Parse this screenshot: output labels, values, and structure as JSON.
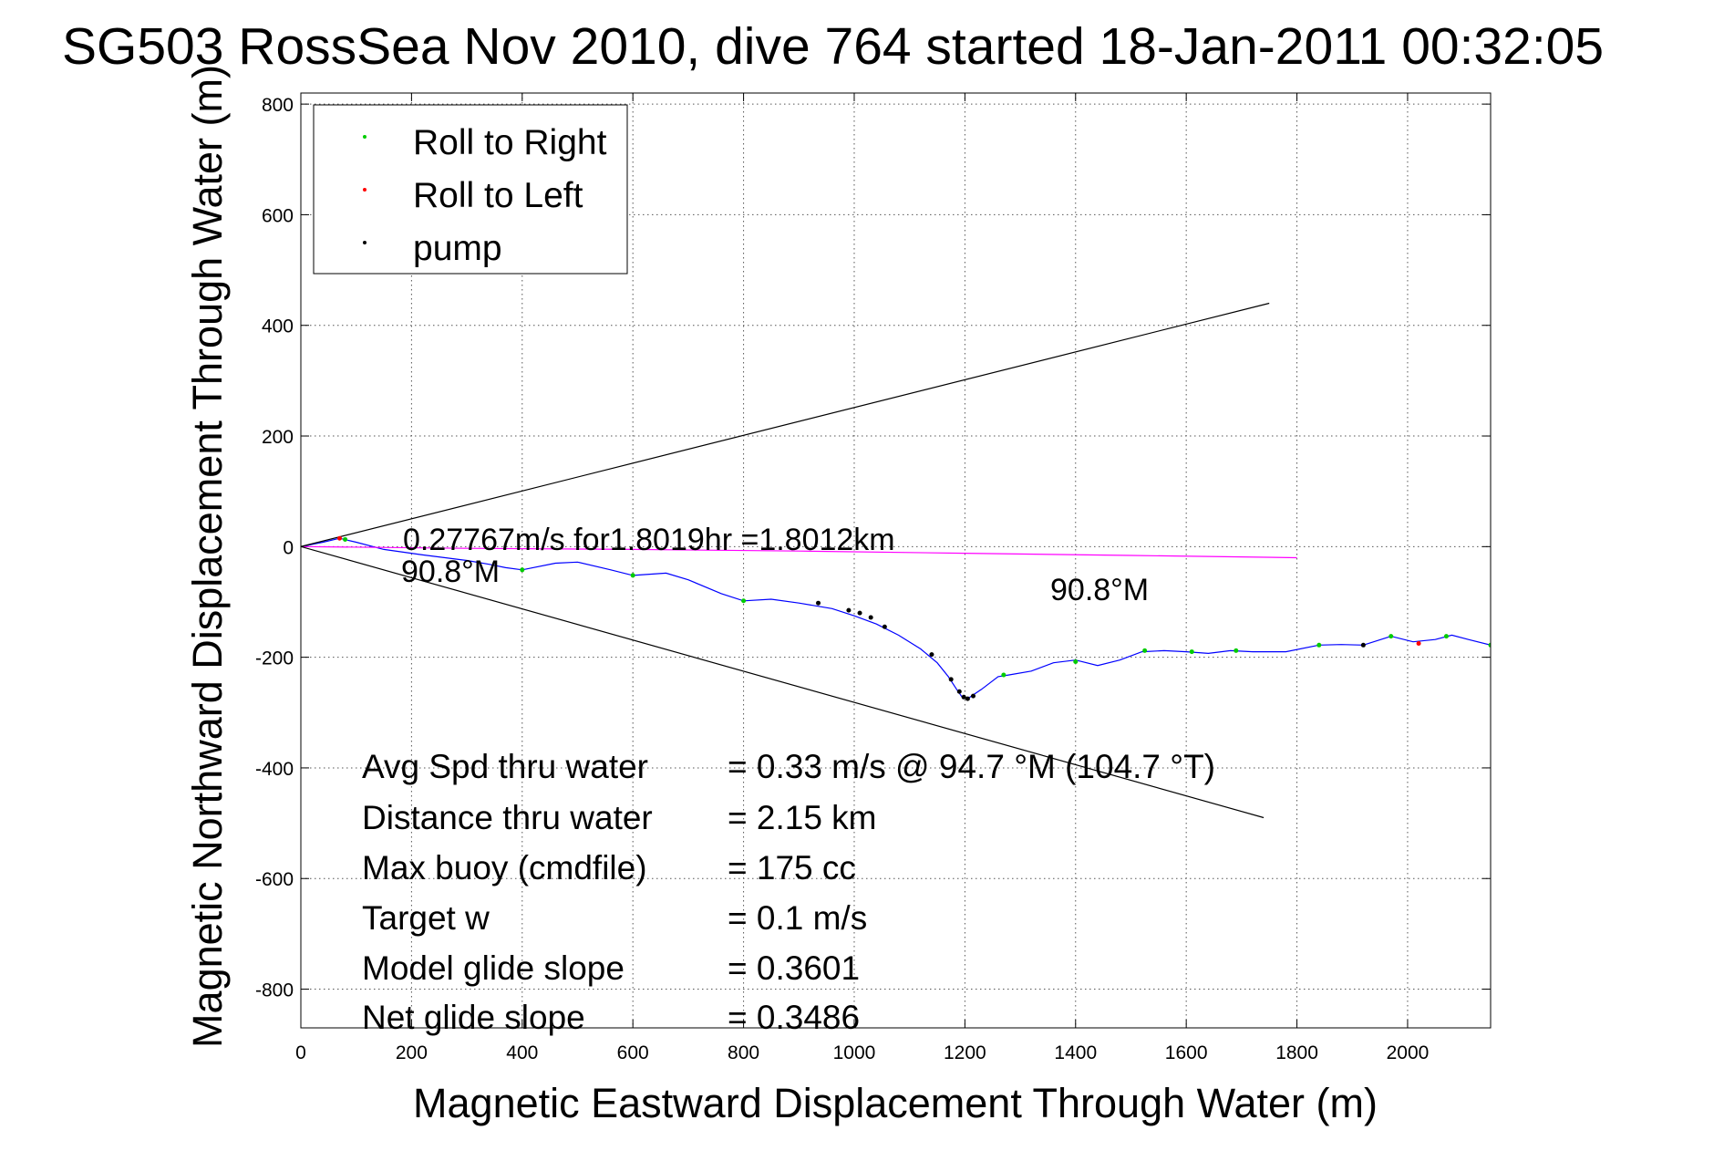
{
  "chart_data": {
    "type": "line",
    "title": "SG503 RossSea Nov 2010, dive 764 started 18-Jan-2011 00:32:05",
    "xlabel": "Magnetic Eastward Displacement Through Water (m)",
    "ylabel": "Magnetic Northward Displacement Through Water (m)",
    "xlim": [
      0,
      2150
    ],
    "ylim": [
      -870,
      820
    ],
    "x_ticks": [
      0,
      200,
      400,
      600,
      800,
      1000,
      1200,
      1400,
      1600,
      1800,
      2000
    ],
    "y_ticks": [
      800,
      600,
      400,
      200,
      0,
      -200,
      -400,
      -600,
      -800
    ],
    "x_tick_labels": [
      "0",
      "200",
      "400",
      "600",
      "800",
      "1000",
      "1200",
      "1400",
      "1600",
      "1800",
      "2000"
    ],
    "y_tick_labels": [
      "800",
      "600",
      "400",
      "200",
      "0",
      "-200",
      "-400",
      "-600",
      "-800"
    ],
    "grid": true,
    "legend": {
      "position": "top-left",
      "entries": [
        {
          "label": "Roll to Right",
          "color": "#00cc00"
        },
        {
          "label": "Roll to Left",
          "color": "#ff0000"
        },
        {
          "label": "pump",
          "color": "#000000"
        }
      ]
    },
    "series": [
      {
        "color": "#0000ff",
        "x": [
          0,
          40,
          70,
          100,
          150,
          220,
          300,
          340,
          370,
          400,
          460,
          500,
          560,
          600,
          660,
          700,
          760,
          800,
          850,
          900,
          960,
          1000,
          1040,
          1080,
          1120,
          1150,
          1170,
          1185,
          1195,
          1205,
          1215,
          1230,
          1260,
          1280,
          1320,
          1360,
          1400,
          1440,
          1480,
          1520,
          1560,
          1600,
          1640,
          1680,
          1720,
          1780,
          1840,
          1880,
          1920,
          1970,
          2010,
          2050,
          2080,
          2110,
          2150
        ],
        "y": [
          0,
          8,
          15,
          8,
          -5,
          -15,
          -25,
          -32,
          -38,
          -42,
          -30,
          -28,
          -42,
          -52,
          -48,
          -60,
          -85,
          -98,
          -95,
          -102,
          -112,
          -125,
          -140,
          -160,
          -185,
          -210,
          -235,
          -258,
          -272,
          -275,
          -268,
          -258,
          -235,
          -232,
          -225,
          -210,
          -205,
          -215,
          -205,
          -190,
          -188,
          -190,
          -193,
          -188,
          -190,
          -190,
          -178,
          -177,
          -178,
          -162,
          -172,
          -168,
          -160,
          -168,
          -178
        ]
      },
      {
        "color": "#ff00ff",
        "x": [
          0,
          300,
          600,
          900,
          1200,
          1500,
          1800
        ],
        "y": [
          0,
          -3,
          -5,
          -8,
          -12,
          -16,
          -20
        ]
      },
      {
        "color": "#000000",
        "x": [
          0,
          1750
        ],
        "y": [
          0,
          440
        ]
      },
      {
        "color": "#000000",
        "x": [
          0,
          1740
        ],
        "y": [
          0,
          -490
        ]
      }
    ],
    "markers": {
      "roll_right": {
        "color": "#00cc00",
        "x": [
          80,
          400,
          600,
          800,
          1270,
          1400,
          1525,
          1610,
          1690,
          1840,
          1970,
          2070,
          2150
        ],
        "y": [
          13,
          -42,
          -52,
          -98,
          -232,
          -208,
          -188,
          -190,
          -188,
          -178,
          -162,
          -162,
          -178
        ]
      },
      "roll_left": {
        "color": "#ff0000",
        "x": [
          70,
          2020
        ],
        "y": [
          15,
          -175
        ]
      },
      "pump": {
        "color": "#000000",
        "x": [
          935,
          990,
          1010,
          1030,
          1055,
          1140,
          1175,
          1190,
          1198,
          1205,
          1215,
          1920
        ],
        "y": [
          -102,
          -115,
          -120,
          -128,
          -145,
          -195,
          -240,
          -262,
          -272,
          -275,
          -270,
          -178
        ]
      }
    },
    "annotations": [
      {
        "text": "0.27767m/s for1.8019hr =1.8012km",
        "x": 180,
        "y": -7
      },
      {
        "text": "90.8°M",
        "x": 180,
        "y": -65
      },
      {
        "text": "90.8°M",
        "x": 1355,
        "y": -98
      }
    ],
    "stats": [
      {
        "label": "Avg Spd thru water",
        "value": "=  0.33 m/s @  94.7 °M (104.7 °T)"
      },
      {
        "label": "Distance thru water",
        "value": "=  2.15 km"
      },
      {
        "label": "Max buoy (cmdfile)",
        "value": "= 175 cc"
      },
      {
        "label": "Target w",
        "value": "= 0.1 m/s"
      },
      {
        "label": "Model glide slope",
        "value": "= 0.3601"
      },
      {
        "label": "Net glide slope",
        "value": "= 0.3486"
      }
    ]
  }
}
